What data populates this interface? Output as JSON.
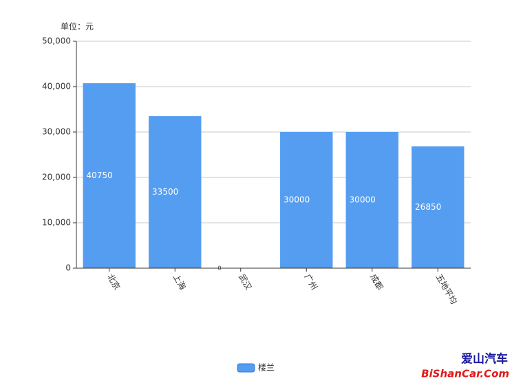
{
  "chart_data": {
    "type": "bar",
    "unit_label": "单位：元",
    "categories": [
      "北京",
      "上海",
      "武汉",
      "广州",
      "成都",
      "五地平均"
    ],
    "series": [
      {
        "name": "楼兰",
        "color": "#559df0",
        "values": [
          40750,
          33500,
          0,
          30000,
          30000,
          26850
        ]
      }
    ],
    "ylim": [
      0,
      50000
    ],
    "yticks": [
      0,
      {
        "value": 10000,
        "label": "10,000"
      },
      {
        "value": 20000,
        "label": "20,000"
      },
      {
        "value": 30000,
        "label": "30,000"
      },
      {
        "value": 40000,
        "label": "40,000"
      },
      {
        "value": 50000,
        "label": "50,000"
      }
    ],
    "grid": true,
    "legend": "bottom"
  },
  "watermark": {
    "line1": "爱山汽车",
    "line2": "BiShanCar.Com"
  }
}
